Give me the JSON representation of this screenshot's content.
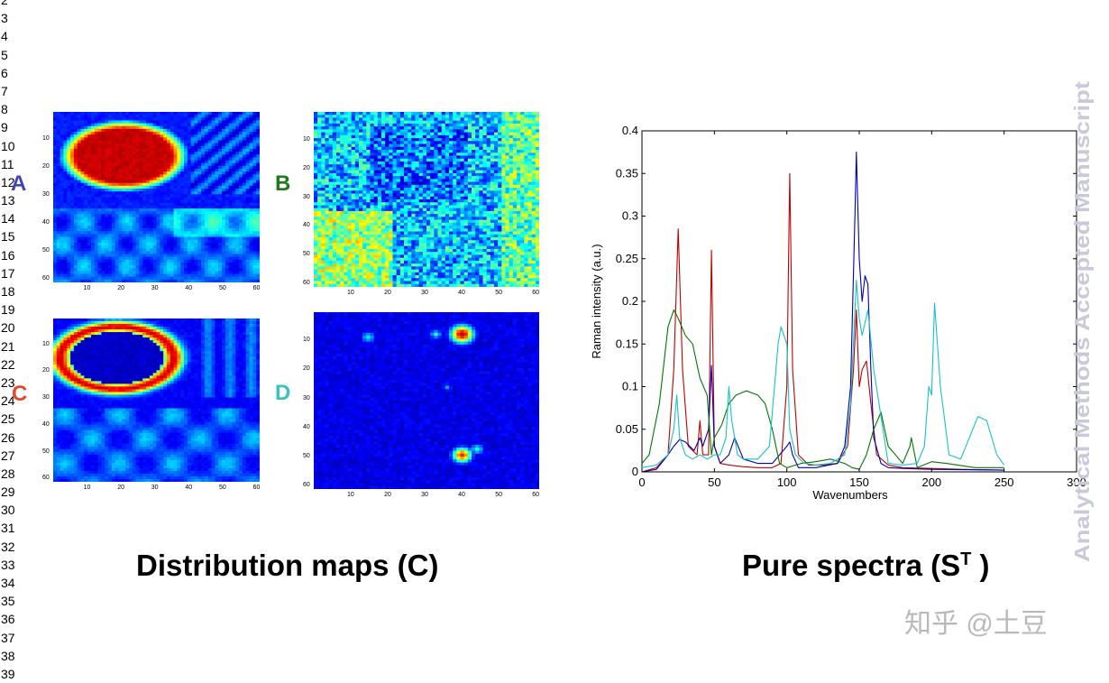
{
  "line_numbers": [
    "2",
    "3",
    "4",
    "5",
    "6",
    "7",
    "8",
    "9",
    "10",
    "11",
    "12",
    "13",
    "14",
    "15",
    "16",
    "17",
    "18",
    "19",
    "20",
    "21",
    "22",
    "23",
    "24",
    "25",
    "26",
    "27",
    "28",
    "29",
    "30",
    "31",
    "32",
    "33",
    "34",
    "35",
    "36",
    "37",
    "38",
    "39"
  ],
  "colors": {
    "A": "#3f46b4",
    "B": "#1f7a1f",
    "C": "#e04b2a",
    "D": "#3bc0c4",
    "watermark": "#c9c9dc",
    "zhihu": "#b9b9b9"
  },
  "maps": [
    {
      "id": "A",
      "letter": "A",
      "kind": "large-blob",
      "yticks": [
        "10",
        "20",
        "30",
        "40",
        "50",
        "60"
      ],
      "xticks": [
        "10",
        "20",
        "30",
        "40",
        "50",
        "60"
      ]
    },
    {
      "id": "B",
      "letter": "B",
      "kind": "noise",
      "yticks": [
        "10",
        "20",
        "30",
        "40",
        "50",
        "60"
      ],
      "xticks": [
        "10",
        "20",
        "30",
        "40",
        "50",
        "60"
      ]
    },
    {
      "id": "C",
      "letter": "C",
      "kind": "ring",
      "yticks": [
        "10",
        "20",
        "30",
        "40",
        "50",
        "60"
      ],
      "xticks": [
        "10",
        "20",
        "30",
        "40",
        "50",
        "60"
      ]
    },
    {
      "id": "D",
      "letter": "D",
      "kind": "spots",
      "yticks": [
        "10",
        "20",
        "30",
        "40",
        "50",
        "60"
      ],
      "xticks": [
        "10",
        "20",
        "30",
        "40",
        "50",
        "60"
      ]
    }
  ],
  "captions": {
    "left": "Distribution maps (C)",
    "right_prefix": "Pure spectra (S",
    "right_sup": "T",
    "right_suffix": " )"
  },
  "watermark": "Analytical Methods Accepted Manuscript",
  "zhihu_mark": "知乎 @土豆",
  "chart_data": {
    "type": "line",
    "title": "",
    "xlabel": "Wavenumbers",
    "ylabel": "Raman intensity (a.u.)",
    "xlim": [
      0,
      300
    ],
    "ylim": [
      0,
      0.4
    ],
    "xticks": [
      0,
      50,
      100,
      150,
      200,
      250,
      300
    ],
    "yticks": [
      0,
      0.05,
      0.1,
      0.15,
      0.2,
      0.25,
      0.3,
      0.35,
      0.4
    ],
    "ytick_labels": [
      "0",
      "0.05",
      "0.1",
      "0.15",
      "0.2",
      "0.25",
      "0.3",
      "0.35",
      "0.4"
    ],
    "series": [
      {
        "name": "red",
        "color": "#c00000",
        "x": [
          0,
          10,
          18,
          22,
          25,
          28,
          32,
          38,
          40,
          42,
          46,
          48,
          50,
          54,
          60,
          70,
          80,
          90,
          96,
          100,
          102,
          104,
          108,
          115,
          125,
          135,
          142,
          146,
          148,
          150,
          152,
          155,
          158,
          162,
          170,
          180,
          200,
          220,
          250
        ],
        "y": [
          0,
          0.005,
          0.02,
          0.12,
          0.285,
          0.12,
          0.03,
          0.02,
          0.06,
          0.02,
          0.02,
          0.26,
          0.03,
          0.01,
          0.008,
          0.006,
          0.005,
          0.005,
          0.01,
          0.1,
          0.35,
          0.12,
          0.02,
          0.008,
          0.008,
          0.01,
          0.03,
          0.12,
          0.19,
          0.1,
          0.12,
          0.13,
          0.08,
          0.02,
          0.008,
          0.005,
          0.004,
          0.003,
          0.002
        ]
      },
      {
        "name": "blue",
        "color": "#0000b4",
        "x": [
          0,
          10,
          18,
          22,
          26,
          30,
          36,
          40,
          42,
          46,
          48,
          50,
          54,
          60,
          64,
          70,
          80,
          90,
          100,
          102,
          104,
          108,
          120,
          135,
          140,
          144,
          147,
          148,
          150,
          152,
          154,
          156,
          158,
          160,
          165,
          170,
          180,
          200,
          250
        ],
        "y": [
          0,
          0.003,
          0.02,
          0.03,
          0.038,
          0.035,
          0.025,
          0.04,
          0.03,
          0.05,
          0.125,
          0.03,
          0.01,
          0.02,
          0.04,
          0.015,
          0.01,
          0.01,
          0.03,
          0.035,
          0.02,
          0.005,
          0.005,
          0.01,
          0.03,
          0.1,
          0.3,
          0.375,
          0.25,
          0.2,
          0.23,
          0.22,
          0.12,
          0.04,
          0.01,
          0.005,
          0.004,
          0.003,
          0.002
        ]
      },
      {
        "name": "green",
        "color": "#007800",
        "x": [
          0,
          5,
          12,
          18,
          22,
          25,
          30,
          35,
          40,
          45,
          48,
          50,
          55,
          60,
          65,
          72,
          80,
          85,
          90,
          95,
          100,
          110,
          120,
          130,
          140,
          145,
          150,
          155,
          160,
          165,
          170,
          180,
          185,
          186,
          190,
          200,
          210,
          230,
          250
        ],
        "y": [
          0.01,
          0.02,
          0.08,
          0.17,
          0.19,
          0.18,
          0.16,
          0.15,
          0.11,
          0.09,
          0.02,
          0.04,
          0.055,
          0.08,
          0.09,
          0.095,
          0.09,
          0.08,
          0.05,
          0.01,
          0.005,
          0.01,
          0.012,
          0.015,
          0.01,
          0.005,
          0.003,
          0.02,
          0.05,
          0.07,
          0.03,
          0.01,
          0.03,
          0.04,
          0.005,
          0.012,
          0.01,
          0.005,
          0.005
        ]
      },
      {
        "name": "cyan",
        "color": "#19c2c7",
        "x": [
          0,
          10,
          18,
          22,
          24,
          26,
          30,
          35,
          40,
          45,
          50,
          54,
          58,
          60,
          62,
          66,
          70,
          80,
          88,
          94,
          96,
          98,
          100,
          102,
          106,
          112,
          120,
          130,
          140,
          144,
          148,
          150,
          152,
          156,
          160,
          170,
          180,
          190,
          195,
          198,
          200,
          202,
          206,
          212,
          220,
          226,
          232,
          238,
          245,
          250
        ],
        "y": [
          0.005,
          0.008,
          0.02,
          0.05,
          0.09,
          0.04,
          0.02,
          0.015,
          0.02,
          0.015,
          0.02,
          0.02,
          0.04,
          0.1,
          0.06,
          0.02,
          0.015,
          0.015,
          0.03,
          0.15,
          0.17,
          0.16,
          0.15,
          0.05,
          0.02,
          0.01,
          0.008,
          0.01,
          0.02,
          0.08,
          0.225,
          0.18,
          0.16,
          0.19,
          0.12,
          0.01,
          0.008,
          0.01,
          0.03,
          0.1,
          0.09,
          0.198,
          0.1,
          0.02,
          0.015,
          0.04,
          0.065,
          0.06,
          0.02,
          0.008
        ]
      }
    ]
  }
}
